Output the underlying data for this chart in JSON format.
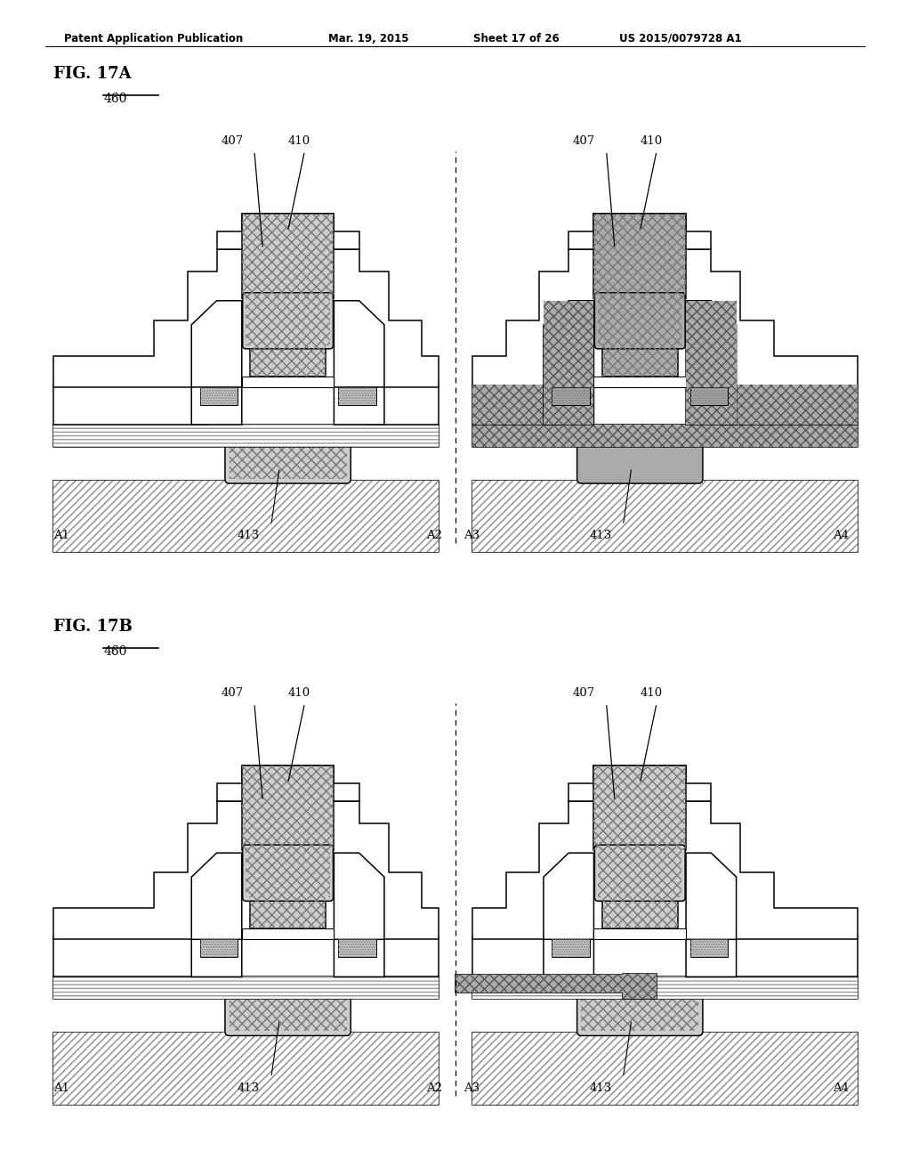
{
  "header_left": "Patent Application Publication",
  "header_mid": "Mar. 19, 2015  Sheet 17 of 26",
  "header_right": "US 2015/0079728 A1",
  "fig17a": "FIG. 17A",
  "fig17b": "FIG. 17B",
  "lbl_460": "460",
  "lbl_407": "407",
  "lbl_410": "410",
  "lbl_413": "413",
  "lbl_A1": "A1",
  "lbl_A2": "A2",
  "lbl_A3": "A3",
  "lbl_A4": "A4",
  "white": "#ffffff",
  "black": "#000000",
  "gray_med": "#aaaaaa",
  "gray_dark": "#777777",
  "gray_light": "#cccccc",
  "gray_xdark": "#555555"
}
